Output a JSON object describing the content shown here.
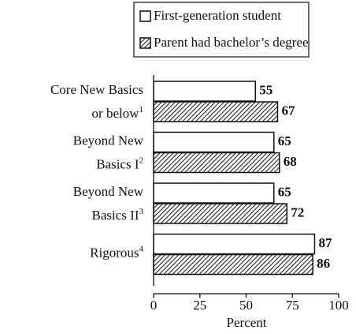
{
  "chart_data": {
    "type": "bar",
    "orientation": "horizontal",
    "categories": [
      "Core New Basics\nor below",
      "Beyond New\nBasics I",
      "Beyond New\nBasics II",
      "Rigorous"
    ],
    "category_notes": [
      "1",
      "2",
      "3",
      "4"
    ],
    "series": [
      {
        "name": "First-generation student",
        "color": "#ffffff",
        "values": [
          55,
          65,
          65,
          87
        ]
      },
      {
        "name": "Parent had bachelor’s degree",
        "color": "hatch",
        "values": [
          67,
          68,
          72,
          86
        ]
      }
    ],
    "x_label": "Percent",
    "xlim": [
      0,
      100
    ],
    "xticks": [
      0,
      25,
      50,
      75,
      100
    ],
    "legend": "top"
  }
}
